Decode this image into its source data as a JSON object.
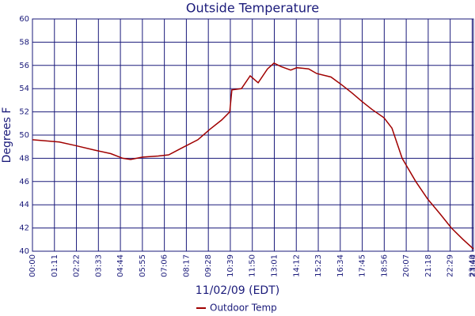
{
  "chart_data": {
    "type": "line",
    "title": "Outside Temperature",
    "x_label": "11/02/09 (EDT)",
    "y_label": "Degrees F",
    "x": [
      0,
      87,
      138,
      202,
      253,
      292,
      317,
      355,
      406,
      440,
      483,
      534,
      573,
      611,
      637,
      644,
      675,
      703,
      729,
      759,
      780,
      803,
      834,
      854,
      892,
      918,
      964,
      1000,
      1033,
      1064,
      1097,
      1135,
      1161,
      1194,
      1238,
      1276,
      1317,
      1353,
      1391,
      1424
    ],
    "series": [
      {
        "name": "Outdoor Temp",
        "color": "#a00000",
        "values": [
          49.6,
          49.4,
          49.1,
          48.7,
          48.4,
          48.0,
          47.9,
          48.1,
          48.2,
          48.3,
          48.9,
          49.6,
          50.5,
          51.3,
          52.0,
          53.9,
          54.0,
          55.1,
          54.5,
          55.7,
          56.2,
          55.9,
          55.6,
          55.8,
          55.7,
          55.3,
          55.0,
          54.3,
          53.6,
          52.9,
          52.2,
          51.5,
          50.6,
          48.0,
          46.0,
          44.5,
          43.2,
          42.0,
          41.0,
          40.2
        ]
      }
    ],
    "xlim": [
      0,
      1424
    ],
    "xticks": [
      {
        "value": 0,
        "label": "00:00"
      },
      {
        "value": 71,
        "label": "01:11"
      },
      {
        "value": 142,
        "label": "02:22"
      },
      {
        "value": 213,
        "label": "03:33"
      },
      {
        "value": 284,
        "label": "04:44"
      },
      {
        "value": 355,
        "label": "05:55"
      },
      {
        "value": 426,
        "label": "07:06"
      },
      {
        "value": 497,
        "label": "08:17"
      },
      {
        "value": 568,
        "label": "09:28"
      },
      {
        "value": 639,
        "label": "10:39"
      },
      {
        "value": 710,
        "label": "11:50"
      },
      {
        "value": 781,
        "label": "13:01"
      },
      {
        "value": 852,
        "label": "14:12"
      },
      {
        "value": 923,
        "label": "15:23"
      },
      {
        "value": 994,
        "label": "16:34"
      },
      {
        "value": 1065,
        "label": "17:45"
      },
      {
        "value": 1136,
        "label": "18:56"
      },
      {
        "value": 1207,
        "label": "20:07"
      },
      {
        "value": 1278,
        "label": "21:18"
      },
      {
        "value": 1349,
        "label": "22:29"
      },
      {
        "value": 1420,
        "label": "23:40"
      },
      {
        "value": 1424,
        "label": "23:44"
      }
    ],
    "ylim": [
      40,
      60
    ],
    "yticks": [
      40,
      42,
      44,
      46,
      48,
      50,
      52,
      54,
      56,
      58,
      60
    ],
    "grid": true,
    "grid_color": "#1a1a7a",
    "legend": "bottom"
  }
}
